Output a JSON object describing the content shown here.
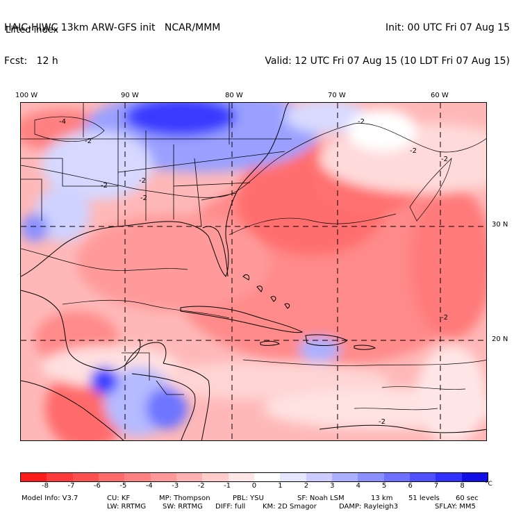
{
  "header": {
    "left_line1": "HAIC-HIWC 13km ARW-GFS init   NCAR/MMM",
    "left_line2": "Fcst:   12 h",
    "right_line1": "Init: 00 UTC Fri 07 Aug 15",
    "right_line2": "Valid: 12 UTC Fri 07 Aug 15 (10 LDT Fri 07 Aug 15)",
    "field_name": "Lifted index"
  },
  "axes": {
    "lon_labels": [
      "100 W",
      "90 W",
      "80 W",
      "70 W",
      "60 W"
    ],
    "lat_labels": [
      "30 N",
      "20 N"
    ]
  },
  "contour_labels": [
    "-4",
    "-2",
    "-2",
    "-2",
    "-2",
    "-2",
    "-2",
    "-2",
    "-2",
    "-2"
  ],
  "colorbar": {
    "ticks": [
      "-8",
      "-7",
      "-6",
      "-5",
      "-4",
      "-3",
      "-2",
      "-1",
      "0",
      "1",
      "2",
      "3",
      "4",
      "5",
      "6",
      "7",
      "8"
    ],
    "unit": "°C",
    "colors": [
      "#ff1a1a",
      "#ff3a3a",
      "#ff5050",
      "#ff6a6a",
      "#ff8080",
      "#ff9999",
      "#ffb0b0",
      "#ffcccc",
      "#ffe6e6",
      "#ffffff",
      "#e6e6ff",
      "#ccccff",
      "#aab0ff",
      "#8c90ff",
      "#6e70ff",
      "#5050ff",
      "#3030ff",
      "#1010e6"
    ]
  },
  "footer": {
    "line1_a": "Model Info: V3.7",
    "line1_b": "CU: KF",
    "line1_c": "MP: Thompson",
    "line1_d": "PBL: YSU",
    "line1_e": "SF: Noah LSM",
    "line1_f": "13 km",
    "line1_g": "51 levels",
    "line1_h": "60 sec",
    "line2_a": "LW: RRTMG",
    "line2_b": "SW: RRTMG",
    "line2_c": "DIFF: full",
    "line2_d": "KM: 2D Smagor",
    "line2_e": "DAMP: Rayleigh3",
    "line2_f": "SFLAY: MM5"
  }
}
